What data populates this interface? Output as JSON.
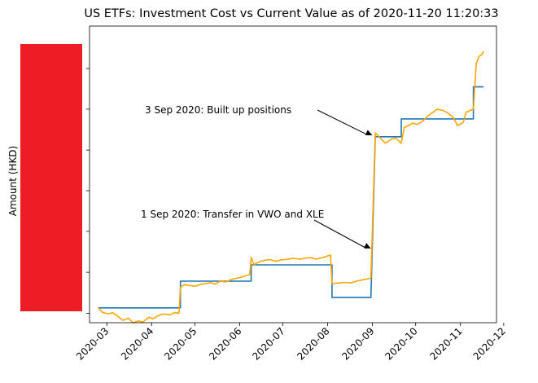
{
  "chart_data": {
    "type": "line",
    "title": "US ETFs: Investment Cost vs Current Value as of 2020-11-20 11:20:33",
    "xlabel": "",
    "ylabel": "Amount (HKD)",
    "xlim": [
      "2020-02-18",
      "2020-11-26"
    ],
    "ylim": [
      0,
      100
    ],
    "y_tick_labels_redacted": true,
    "redaction_color": "#ee1c24",
    "x_tick_labels": [
      "2020-03",
      "2020-04",
      "2020-05",
      "2020-06",
      "2020-07",
      "2020-08",
      "2020-09",
      "2020-10",
      "2020-11",
      "2020-12"
    ],
    "x_ticks": [
      "2020-03-01",
      "2020-04-01",
      "2020-05-01",
      "2020-06-01",
      "2020-07-01",
      "2020-08-01",
      "2020-09-01",
      "2020-10-01",
      "2020-11-01",
      "2020-12-01"
    ],
    "y_ticks": [
      3.2,
      17.0,
      30.8,
      44.5,
      58.2,
      72.0,
      85.7
    ],
    "grid": false,
    "series": [
      {
        "color": "#1f77b4",
        "points": [
          [
            "2020-02-24",
            5.0
          ],
          [
            "2020-04-21",
            5.0
          ],
          [
            "2020-04-21",
            14.0
          ],
          [
            "2020-06-09",
            14.0
          ],
          [
            "2020-06-09",
            19.5
          ],
          [
            "2020-08-04",
            19.5
          ],
          [
            "2020-08-04",
            8.5
          ],
          [
            "2020-08-31",
            8.5
          ],
          [
            "2020-09-03",
            62.7
          ],
          [
            "2020-09-21",
            62.7
          ],
          [
            "2020-09-21",
            68.7
          ],
          [
            "2020-11-10",
            68.7
          ],
          [
            "2020-11-10",
            79.5
          ],
          [
            "2020-11-17",
            79.5
          ]
        ]
      },
      {
        "color": "#ffa500",
        "points": [
          [
            "2020-02-24",
            5.0
          ],
          [
            "2020-02-27",
            3.5
          ],
          [
            "2020-03-02",
            3.0
          ],
          [
            "2020-03-05",
            3.4
          ],
          [
            "2020-03-09",
            2.0
          ],
          [
            "2020-03-12",
            0.8
          ],
          [
            "2020-03-16",
            1.5
          ],
          [
            "2020-03-19",
            0.0
          ],
          [
            "2020-03-23",
            0.6
          ],
          [
            "2020-03-26",
            0.2
          ],
          [
            "2020-03-30",
            1.8
          ],
          [
            "2020-04-02",
            1.3
          ],
          [
            "2020-04-06",
            2.5
          ],
          [
            "2020-04-09",
            2.9
          ],
          [
            "2020-04-14",
            2.7
          ],
          [
            "2020-04-17",
            3.4
          ],
          [
            "2020-04-20",
            3.2
          ],
          [
            "2020-04-21",
            12.0
          ],
          [
            "2020-04-24",
            12.8
          ],
          [
            "2020-04-28",
            12.5
          ],
          [
            "2020-05-01",
            12.3
          ],
          [
            "2020-05-05",
            12.9
          ],
          [
            "2020-05-08",
            13.2
          ],
          [
            "2020-05-12",
            13.5
          ],
          [
            "2020-05-15",
            13.0
          ],
          [
            "2020-05-19",
            14.2
          ],
          [
            "2020-05-22",
            13.7
          ],
          [
            "2020-05-26",
            14.5
          ],
          [
            "2020-05-29",
            14.9
          ],
          [
            "2020-06-02",
            15.3
          ],
          [
            "2020-06-05",
            15.8
          ],
          [
            "2020-06-08",
            16.2
          ],
          [
            "2020-06-09",
            22.0
          ],
          [
            "2020-06-11",
            19.6
          ],
          [
            "2020-06-15",
            20.6
          ],
          [
            "2020-06-18",
            21.0
          ],
          [
            "2020-06-22",
            21.3
          ],
          [
            "2020-06-26",
            20.7
          ],
          [
            "2020-06-30",
            21.2
          ],
          [
            "2020-07-03",
            21.3
          ],
          [
            "2020-07-08",
            21.7
          ],
          [
            "2020-07-13",
            21.4
          ],
          [
            "2020-07-17",
            21.8
          ],
          [
            "2020-07-21",
            21.9
          ],
          [
            "2020-07-24",
            21.4
          ],
          [
            "2020-07-29",
            22.0
          ],
          [
            "2020-08-03",
            22.8
          ],
          [
            "2020-08-04",
            13.2
          ],
          [
            "2020-08-07",
            13.3
          ],
          [
            "2020-08-12",
            13.6
          ],
          [
            "2020-08-17",
            13.4
          ],
          [
            "2020-08-21",
            14.0
          ],
          [
            "2020-08-26",
            14.5
          ],
          [
            "2020-08-31",
            15.0
          ],
          [
            "2020-09-03",
            64.0
          ],
          [
            "2020-09-07",
            62.0
          ],
          [
            "2020-09-10",
            60.5
          ],
          [
            "2020-09-14",
            61.8
          ],
          [
            "2020-09-17",
            62.3
          ],
          [
            "2020-09-21",
            60.5
          ],
          [
            "2020-09-23",
            65.8
          ],
          [
            "2020-09-25",
            66.2
          ],
          [
            "2020-09-29",
            67.3
          ],
          [
            "2020-10-02",
            66.8
          ],
          [
            "2020-10-06",
            68.0
          ],
          [
            "2020-10-09",
            69.5
          ],
          [
            "2020-10-13",
            71.0
          ],
          [
            "2020-10-16",
            72.0
          ],
          [
            "2020-10-20",
            71.5
          ],
          [
            "2020-10-23",
            70.8
          ],
          [
            "2020-10-27",
            69.2
          ],
          [
            "2020-10-30",
            66.5
          ],
          [
            "2020-11-03",
            67.5
          ],
          [
            "2020-11-05",
            71.0
          ],
          [
            "2020-11-09",
            71.8
          ],
          [
            "2020-11-10",
            72.0
          ],
          [
            "2020-11-12",
            87.5
          ],
          [
            "2020-11-14",
            89.8
          ],
          [
            "2020-11-16",
            90.5
          ],
          [
            "2020-11-17",
            91.5
          ]
        ]
      }
    ],
    "annotations": [
      {
        "text": "3 Sep 2020: Built up positions",
        "point": [
          "2020-09-01",
          63.2
        ]
      },
      {
        "text": "1 Sep 2020: Transfer in VWO and XLE",
        "point": [
          "2020-08-31",
          25.0
        ]
      }
    ]
  }
}
